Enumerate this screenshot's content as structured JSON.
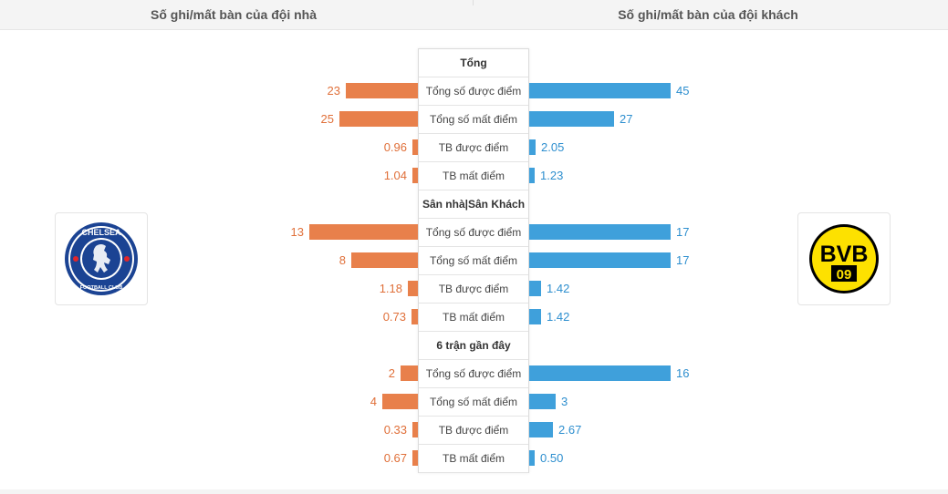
{
  "header": {
    "home_title": "Số ghi/mất bàn của đội nhà",
    "away_title": "Số ghi/mất bàn của đội khách"
  },
  "teams": {
    "home": {
      "name": "Chelsea",
      "logo": "chelsea-crest"
    },
    "away": {
      "name": "Borussia Dortmund",
      "logo": "bvb-crest"
    }
  },
  "colors": {
    "home_bar": "#e8804b",
    "away_bar": "#3fa0db"
  },
  "sections": [
    {
      "title": "Tổng",
      "rows": [
        {
          "label": "Tổng số được điểm",
          "home": "23",
          "away": "45",
          "home_num": 23,
          "away_num": 45
        },
        {
          "label": "Tổng số mất điểm",
          "home": "25",
          "away": "27",
          "home_num": 25,
          "away_num": 27
        },
        {
          "label": "TB được điểm",
          "home": "0.96",
          "away": "2.05",
          "home_num": 0.96,
          "away_num": 2.05
        },
        {
          "label": "TB mất điểm",
          "home": "1.04",
          "away": "1.23",
          "home_num": 1.04,
          "away_num": 1.23
        }
      ]
    },
    {
      "title": "Sân nhà|Sân Khách",
      "rows": [
        {
          "label": "Tổng số được điểm",
          "home": "13",
          "away": "17",
          "home_num": 13,
          "away_num": 17
        },
        {
          "label": "Tổng số mất điểm",
          "home": "8",
          "away": "17",
          "home_num": 8,
          "away_num": 17
        },
        {
          "label": "TB được điểm",
          "home": "1.18",
          "away": "1.42",
          "home_num": 1.18,
          "away_num": 1.42
        },
        {
          "label": "TB mất điểm",
          "home": "0.73",
          "away": "1.42",
          "home_num": 0.73,
          "away_num": 1.42
        }
      ]
    },
    {
      "title": "6 trận gần đây",
      "rows": [
        {
          "label": "Tổng số được điểm",
          "home": "2",
          "away": "16",
          "home_num": 2,
          "away_num": 16
        },
        {
          "label": "Tổng số mất điểm",
          "home": "4",
          "away": "3",
          "home_num": 4,
          "away_num": 3
        },
        {
          "label": "TB được điểm",
          "home": "0.33",
          "away": "2.67",
          "home_num": 0.33,
          "away_num": 2.67
        },
        {
          "label": "TB mất điểm",
          "home": "0.67",
          "away": "0.50",
          "home_num": 0.67,
          "away_num": 0.5
        }
      ]
    }
  ]
}
